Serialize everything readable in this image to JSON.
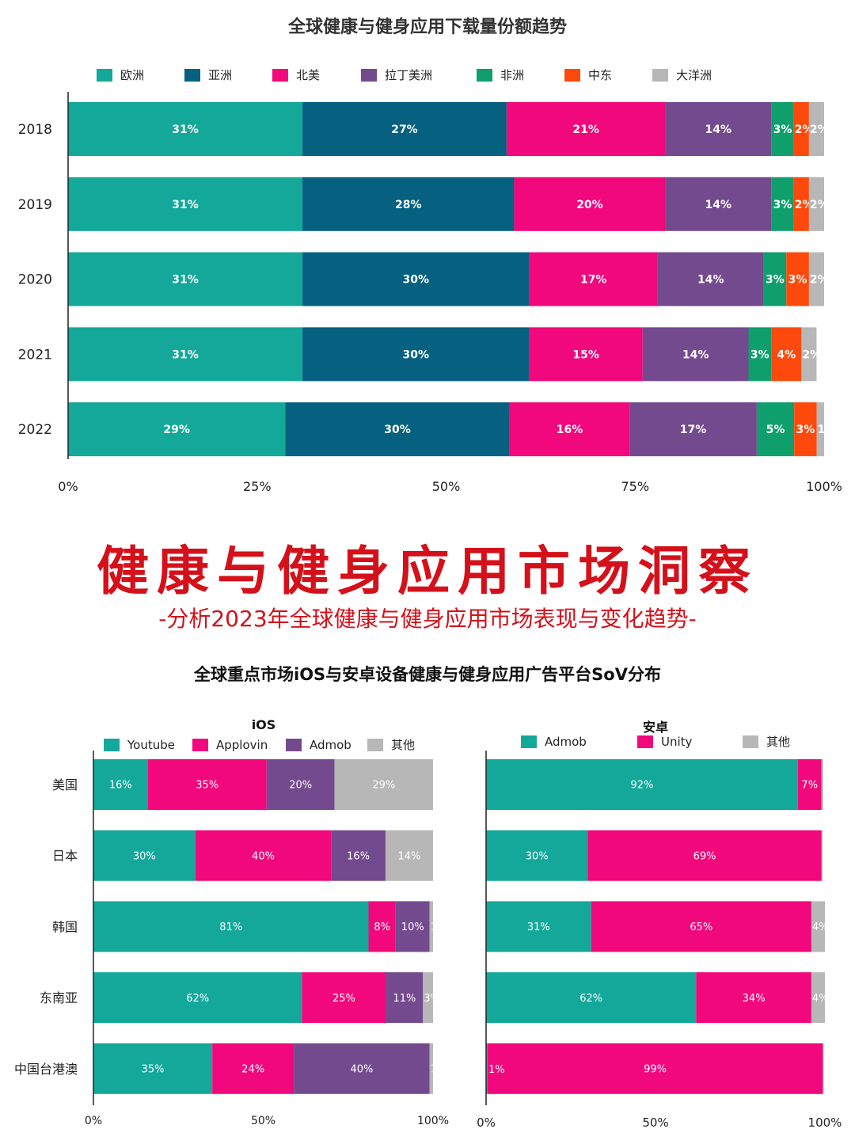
{
  "chart_data": [
    {
      "type": "bar",
      "orientation": "horizontal",
      "stacked": true,
      "title": "全球健康与健身应用下载量份额趋势",
      "categories": [
        "2018",
        "2019",
        "2020",
        "2021",
        "2022"
      ],
      "series": [
        {
          "name": "欧洲",
          "color": "#14a89a",
          "values": [
            31,
            31,
            31,
            31,
            29
          ],
          "labels": [
            "31%",
            "31%",
            "31%",
            "31%",
            "29%"
          ]
        },
        {
          "name": "亚洲",
          "color": "#05617f",
          "values": [
            27,
            28,
            30,
            30,
            30
          ],
          "labels": [
            "27%",
            "28%",
            "30%",
            "30%",
            "30%"
          ]
        },
        {
          "name": "北美",
          "color": "#f1087c",
          "values": [
            21,
            20,
            17,
            15,
            16
          ],
          "labels": [
            "21%",
            "20%",
            "17%",
            "15%",
            "16%"
          ]
        },
        {
          "name": "拉丁美洲",
          "color": "#744a8e",
          "values": [
            14,
            14,
            14,
            14,
            17
          ],
          "labels": [
            "14%",
            "14%",
            "14%",
            "14%",
            "17%"
          ]
        },
        {
          "name": "非洲",
          "color": "#0f9f6c",
          "values": [
            3,
            3,
            3,
            3,
            5
          ],
          "labels": [
            "3%",
            "3%",
            "3%",
            "3%",
            "5%"
          ]
        },
        {
          "name": "中东",
          "color": "#fd4a0c",
          "values": [
            2,
            2,
            3,
            4,
            3
          ],
          "labels": [
            "2%",
            "2%",
            "3%",
            "4%",
            "3%"
          ]
        },
        {
          "name": "大洋洲",
          "color": "#b7b7b7",
          "values": [
            2,
            2,
            2,
            2,
            1
          ],
          "labels": [
            "2%",
            "2%",
            "2%",
            "2%",
            "1%"
          ]
        }
      ],
      "xticks": [
        "0%",
        "25%",
        "50%",
        "75%",
        "100%"
      ],
      "xlim": [
        0,
        100
      ],
      "legend": "top",
      "grid": false
    },
    {
      "type": "bar",
      "orientation": "horizontal",
      "stacked": true,
      "title": "iOS",
      "categories": [
        "美国",
        "日本",
        "韩国",
        "东南亚",
        "中国台港澳"
      ],
      "series": [
        {
          "name": "Youtube",
          "color": "#14a89a",
          "values": [
            16,
            30,
            81,
            62,
            35
          ],
          "labels": [
            "16%",
            "30%",
            "81%",
            "62%",
            "35%"
          ]
        },
        {
          "name": "Applovin",
          "color": "#f1087c",
          "values": [
            35,
            40,
            8,
            25,
            24
          ],
          "labels": [
            "35%",
            "40%",
            "8%",
            "25%",
            "24%"
          ]
        },
        {
          "name": "Admob",
          "color": "#744a8e",
          "values": [
            20,
            16,
            10,
            11,
            40
          ],
          "labels": [
            "20%",
            "16%",
            "10%",
            "11%",
            "40%"
          ]
        },
        {
          "name": "其他",
          "color": "#b7b7b7",
          "values": [
            29,
            14,
            1,
            3,
            1
          ],
          "labels": [
            "29%",
            "14%",
            "1%",
            "3%",
            "1%"
          ]
        }
      ],
      "xticks": [
        "0%",
        "50%",
        "100%"
      ],
      "xlim": [
        0,
        100
      ],
      "legend": "top",
      "grid": false
    },
    {
      "type": "bar",
      "orientation": "horizontal",
      "stacked": true,
      "title": "安卓",
      "categories": [
        "美国",
        "日本",
        "韩国",
        "东南亚",
        "中国台港澳"
      ],
      "series": [
        {
          "name": "Admob",
          "color": "#14a89a",
          "values": [
            92,
            30,
            31,
            62,
            0.4
          ],
          "labels": [
            "92%",
            "30%",
            "31%",
            "62%",
            "0%"
          ]
        },
        {
          "name": "Unity",
          "color": "#f1087c",
          "values": [
            7,
            69,
            65,
            34,
            99
          ],
          "labels": [
            "7%",
            "69%",
            "65%",
            "34%",
            "99%"
          ]
        },
        {
          "name": "其他",
          "color": "#b7b7b7",
          "values": [
            0.5,
            0.3,
            4,
            4,
            0.2
          ],
          "labels": [
            "",
            "",
            "4%",
            "4%",
            ""
          ]
        }
      ],
      "extra_labels": [
        "1%"
      ],
      "xticks": [
        "0%",
        "50%",
        "100%"
      ],
      "xlim": [
        0,
        100
      ],
      "legend": "top",
      "grid": false
    }
  ],
  "banner": {
    "title": "健康与健身应用市场洞察",
    "subtitle": "-分析2023年全球健康与健身应用市场表现与变化趋势-"
  },
  "section2_title": "全球重点市场iOS与安卓设备健康与健身应用广告平台SoV分布"
}
